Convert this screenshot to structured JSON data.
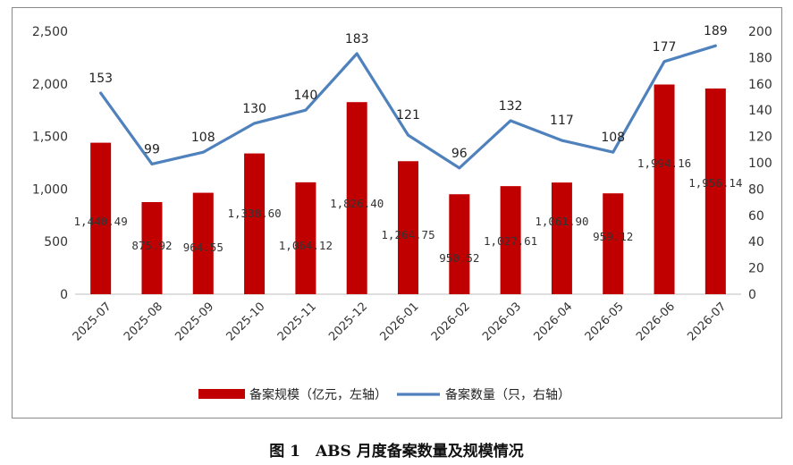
{
  "caption": "图 1　ABS 月度备案数量及规模情况",
  "chart_data": {
    "type": "bar",
    "categories": [
      "2025-07",
      "2025-08",
      "2025-09",
      "2025-10",
      "2025-11",
      "2025-12",
      "2026-01",
      "2026-02",
      "2026-03",
      "2026-04",
      "2026-05",
      "2026-06",
      "2026-07"
    ],
    "series": [
      {
        "name": "备案规模（亿元，左轴）",
        "type": "bar",
        "axis": "left",
        "color": "#C00000",
        "values": [
          1440.49,
          875.92,
          964.55,
          1338.6,
          1064.12,
          1826.4,
          1264.75,
          950.52,
          1027.61,
          1061.9,
          959.12,
          1994.16,
          1956.14
        ],
        "labels": [
          "1,440.49",
          "875.92",
          "964.55",
          "1,338.60",
          "1,064.12",
          "1,826.40",
          "1,264.75",
          "950.52",
          "1,027.61",
          "1,061.90",
          "959.12",
          "1,994.16",
          "1,956.14"
        ]
      },
      {
        "name": "备案数量（只，右轴）",
        "type": "line",
        "axis": "right",
        "color": "#4F81BD",
        "values": [
          153,
          99,
          108,
          130,
          140,
          183,
          121,
          96,
          132,
          117,
          108,
          177,
          189
        ],
        "labels": [
          "153",
          "99",
          "108",
          "130",
          "140",
          "183",
          "121",
          "96",
          "132",
          "117",
          "108",
          "177",
          "189"
        ]
      }
    ],
    "y_left": {
      "min": 0,
      "max": 2500,
      "ticks": [
        "0",
        "500",
        "1,000",
        "1,500",
        "2,000",
        "2,500"
      ]
    },
    "y_right": {
      "min": 0,
      "max": 200,
      "ticks": [
        "0",
        "20",
        "40",
        "60",
        "80",
        "100",
        "120",
        "140",
        "160",
        "180",
        "200"
      ]
    },
    "grid": false,
    "legend_position": "bottom"
  }
}
